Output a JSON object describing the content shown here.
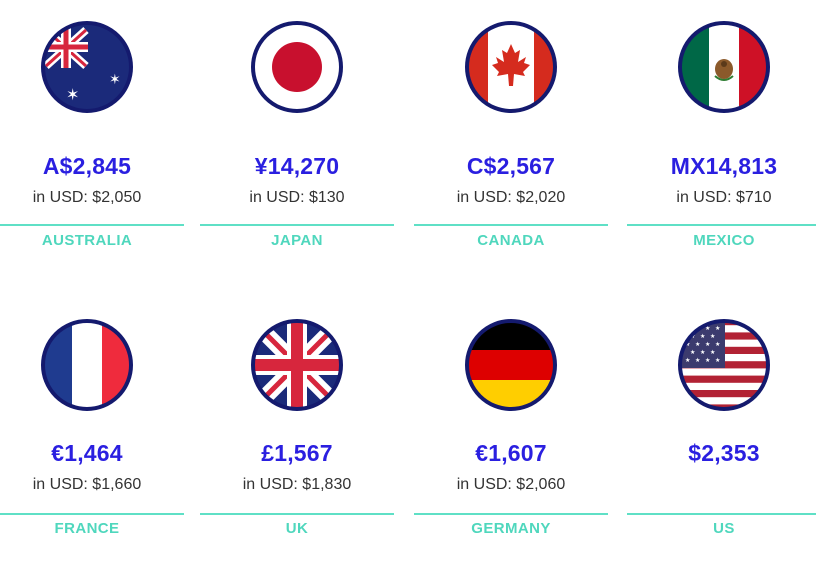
{
  "countries": [
    {
      "name": "AUSTRALIA",
      "price": "A$2,845",
      "usd": "in USD: $2,050",
      "flag_icon": "australia-flag-icon"
    },
    {
      "name": "JAPAN",
      "price": "¥14,270",
      "usd": "in USD: $130",
      "flag_icon": "japan-flag-icon"
    },
    {
      "name": "CANADA",
      "price": "C$2,567",
      "usd": "in USD: $2,020",
      "flag_icon": "canada-flag-icon"
    },
    {
      "name": "MEXICO",
      "price": "MX14,813",
      "usd": "in USD: $710",
      "flag_icon": "mexico-flag-icon"
    },
    {
      "name": "FRANCE",
      "price": "€1,464",
      "usd": "in USD: $1,660",
      "flag_icon": "france-flag-icon"
    },
    {
      "name": "UK",
      "price": "£1,567",
      "usd": "in USD: $1,830",
      "flag_icon": "uk-flag-icon"
    },
    {
      "name": "GERMANY",
      "price": "€1,607",
      "usd": "in USD: $2,060",
      "flag_icon": "germany-flag-icon"
    },
    {
      "name": "US",
      "price": "$2,353",
      "usd": "",
      "flag_icon": "us-flag-icon"
    }
  ],
  "colors": {
    "price": "#2a1fe0",
    "country": "#4fd7bd",
    "rule": "#5fe0c6",
    "flag_ring": "#141a6e"
  }
}
